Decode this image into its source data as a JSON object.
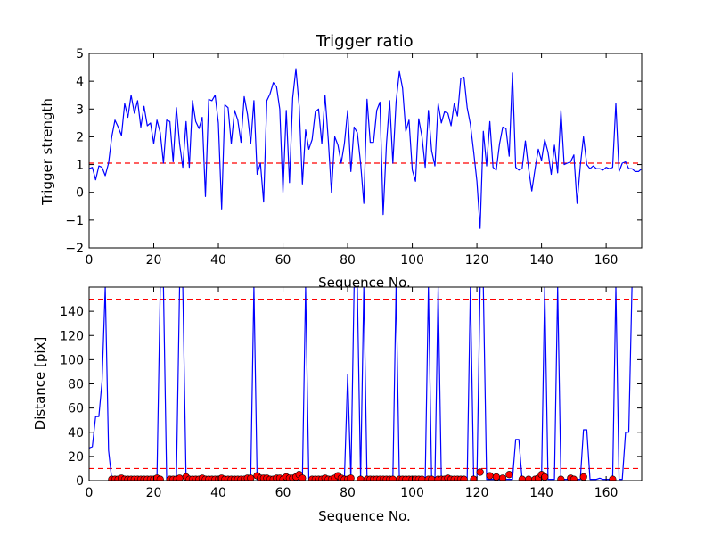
{
  "figure": {
    "title": "Trigger ratio"
  },
  "chart_data": [
    {
      "type": "line",
      "title": "Trigger ratio",
      "xlabel": "Sequence No.",
      "ylabel": "Trigger strength",
      "xlim": [
        0,
        171
      ],
      "ylim": [
        -2,
        5
      ],
      "xticks": [
        0,
        20,
        40,
        60,
        80,
        100,
        120,
        140,
        160
      ],
      "yticks": [
        -2,
        -1,
        0,
        1,
        2,
        3,
        4,
        5
      ],
      "grid": false,
      "series": [
        {
          "color": "#0000ff",
          "x_start": 0,
          "values": [
            0.85,
            0.9,
            0.45,
            0.95,
            0.9,
            0.6,
            1.05,
            2.0,
            2.6,
            2.35,
            2.05,
            3.2,
            2.7,
            3.5,
            2.85,
            3.3,
            2.35,
            3.1,
            2.4,
            2.5,
            1.75,
            2.6,
            2.15,
            1.05,
            2.6,
            2.55,
            1.1,
            3.05,
            1.75,
            0.9,
            2.55,
            0.9,
            3.3,
            2.55,
            2.3,
            2.7,
            -0.15,
            3.35,
            3.3,
            3.5,
            2.5,
            -0.6,
            3.15,
            3.05,
            1.75,
            2.95,
            2.6,
            1.8,
            3.45,
            2.8,
            1.75,
            3.3,
            0.65,
            1.05,
            -0.35,
            3.3,
            3.55,
            3.95,
            3.8,
            3.0,
            0.0,
            2.95,
            0.35,
            3.4,
            4.45,
            3.1,
            0.3,
            2.25,
            1.55,
            1.9,
            2.9,
            3.0,
            1.75,
            3.5,
            1.9,
            0.0,
            2.0,
            1.7,
            1.05,
            1.75,
            2.95,
            0.75,
            2.35,
            2.15,
            1.05,
            -0.4,
            3.35,
            1.8,
            1.8,
            2.95,
            3.25,
            -0.8,
            1.75,
            3.3,
            1.05,
            3.25,
            4.35,
            3.75,
            2.2,
            2.6,
            0.8,
            0.4,
            2.65,
            2.0,
            0.9,
            2.95,
            1.5,
            0.95,
            3.2,
            2.5,
            2.9,
            2.85,
            2.4,
            3.2,
            2.75,
            4.1,
            4.15,
            3.05,
            2.45,
            1.45,
            0.4,
            -1.3,
            2.2,
            0.95,
            2.55,
            0.9,
            0.8,
            1.75,
            2.35,
            2.3,
            1.3,
            4.3,
            0.9,
            0.8,
            0.85,
            1.85,
            0.85,
            0.05,
            0.85,
            1.55,
            1.15,
            1.9,
            1.45,
            0.65,
            1.7,
            0.7,
            2.95,
            1.0,
            1.05,
            1.1,
            1.35,
            -0.4,
            0.95,
            2.0,
            1.0,
            0.85,
            0.95,
            0.85,
            0.85,
            0.8,
            0.9,
            0.85,
            0.9,
            3.2,
            0.75,
            1.05,
            1.1,
            0.85,
            0.85,
            0.75,
            0.75,
            0.85,
            0.75
          ]
        }
      ],
      "reference_lines": [
        {
          "y": 1.05,
          "color": "#ff0000",
          "style": "dashed"
        }
      ]
    },
    {
      "type": "line",
      "title": "",
      "xlabel": "Sequence No.",
      "ylabel": "Distance [pix]",
      "xlim": [
        0,
        171
      ],
      "ylim": [
        0,
        160
      ],
      "xticks": [
        0,
        20,
        40,
        60,
        80,
        100,
        120,
        140,
        160
      ],
      "yticks": [
        0,
        20,
        40,
        60,
        80,
        100,
        120,
        140
      ],
      "grid": false,
      "series": [
        {
          "color": "#0000ff",
          "x": [
            0,
            1,
            2,
            3,
            4,
            5,
            6,
            7,
            8,
            9,
            10,
            11,
            12,
            13,
            14,
            15,
            16,
            17,
            18,
            19,
            20,
            21,
            22,
            23,
            24,
            25,
            26,
            27,
            28,
            29,
            30,
            31,
            32,
            33,
            34,
            35,
            36,
            37,
            38,
            39,
            40,
            41,
            42,
            43,
            44,
            45,
            46,
            47,
            48,
            49,
            50,
            51,
            52,
            53,
            54,
            55,
            56,
            57,
            58,
            59,
            60,
            61,
            62,
            63,
            64,
            65,
            66,
            67,
            68,
            69,
            70,
            71,
            72,
            73,
            74,
            75,
            76,
            77,
            78,
            79,
            80,
            81,
            82,
            83,
            84,
            85,
            86,
            87,
            88,
            89,
            90,
            91,
            92,
            93,
            94,
            95,
            96,
            97,
            98,
            99,
            100,
            101,
            102,
            103,
            104,
            105,
            106,
            107,
            108,
            109,
            110,
            111,
            112,
            113,
            114,
            115,
            116,
            117,
            118,
            119,
            120,
            121,
            122,
            123,
            124,
            125,
            126,
            127,
            128,
            129,
            130,
            131,
            132,
            133,
            134,
            135,
            136,
            137,
            138,
            139,
            140,
            141,
            142,
            143,
            144,
            145,
            146,
            147,
            148,
            149,
            150,
            151,
            152,
            153,
            154,
            155,
            156,
            157,
            158,
            159,
            160,
            161,
            162,
            163,
            164,
            165,
            166,
            167,
            168
          ],
          "values": [
            27,
            28,
            53,
            53,
            82,
            160,
            25,
            1,
            1,
            1,
            2,
            1,
            1,
            1,
            1,
            1,
            1,
            1,
            1,
            1,
            1,
            1,
            160,
            160,
            1,
            1,
            1,
            1,
            160,
            160,
            1,
            1,
            1,
            1,
            1,
            1,
            1,
            1,
            1,
            1,
            1,
            1,
            1,
            1,
            1,
            1,
            1,
            1,
            1,
            1,
            1,
            160,
            1,
            1,
            1,
            1,
            1,
            1,
            1,
            1,
            1,
            1,
            1,
            1,
            1,
            1,
            1,
            160,
            1,
            1,
            1,
            1,
            1,
            1,
            1,
            1,
            1,
            1,
            1,
            1,
            88,
            1,
            160,
            160,
            1,
            160,
            1,
            1,
            1,
            1,
            1,
            1,
            1,
            1,
            1,
            160,
            1,
            1,
            1,
            1,
            1,
            1,
            1,
            1,
            1,
            160,
            1,
            1,
            160,
            1,
            1,
            1,
            1,
            1,
            1,
            1,
            1,
            1,
            160,
            1,
            1,
            160,
            160,
            1,
            1,
            1,
            1,
            1,
            1,
            1,
            1,
            1,
            34,
            34,
            1,
            1,
            1,
            1,
            1,
            1,
            1,
            160,
            1,
            1,
            1,
            160,
            1,
            1,
            1,
            1,
            1,
            1,
            1,
            42,
            42,
            1,
            1,
            1,
            2,
            1,
            1,
            1,
            1,
            160,
            1,
            1,
            40,
            40,
            160
          ]
        },
        {
          "type": "scatter",
          "color": "#ff0000",
          "marker": "circle",
          "x": [
            7,
            8,
            9,
            10,
            11,
            12,
            13,
            14,
            15,
            16,
            17,
            18,
            19,
            20,
            21,
            22,
            25,
            26,
            27,
            28,
            30,
            31,
            32,
            33,
            34,
            35,
            36,
            37,
            38,
            39,
            40,
            41,
            42,
            43,
            44,
            45,
            46,
            47,
            48,
            49,
            50,
            52,
            53,
            54,
            55,
            56,
            57,
            58,
            59,
            60,
            61,
            62,
            63,
            64,
            65,
            66,
            69,
            70,
            71,
            72,
            73,
            74,
            75,
            76,
            77,
            78,
            79,
            80,
            81,
            84,
            86,
            87,
            88,
            89,
            90,
            91,
            92,
            93,
            94,
            96,
            97,
            98,
            99,
            100,
            101,
            102,
            103,
            105,
            106,
            108,
            109,
            110,
            111,
            112,
            113,
            114,
            115,
            116,
            119,
            121,
            124,
            126,
            128,
            130,
            134,
            136,
            138,
            139,
            140,
            141,
            146,
            149,
            150,
            153,
            162
          ],
          "values": [
            1,
            1,
            1,
            2,
            1,
            1,
            1,
            1,
            1,
            1,
            1,
            1,
            1,
            1,
            2,
            1,
            1,
            1,
            1,
            2,
            3,
            1,
            1,
            1,
            1,
            2,
            1,
            1,
            1,
            1,
            1,
            2,
            1,
            1,
            1,
            1,
            1,
            1,
            1,
            2,
            2,
            4,
            2,
            2,
            2,
            1,
            1,
            2,
            2,
            1,
            3,
            2,
            2,
            3,
            5,
            2,
            1,
            1,
            1,
            1,
            2,
            1,
            1,
            2,
            4,
            2,
            1,
            1,
            2,
            1,
            1,
            1,
            1,
            1,
            1,
            1,
            1,
            1,
            1,
            1,
            1,
            1,
            1,
            1,
            1,
            1,
            1,
            1,
            1,
            1,
            1,
            1,
            2,
            1,
            1,
            1,
            1,
            1,
            1,
            7,
            4,
            3,
            2,
            5,
            1,
            1,
            1,
            2,
            5,
            3,
            1,
            2,
            1,
            3,
            1
          ]
        }
      ],
      "reference_lines": [
        {
          "y": 150,
          "color": "#ff0000",
          "style": "dashed"
        },
        {
          "y": 10,
          "color": "#ff0000",
          "style": "dashed"
        }
      ]
    }
  ]
}
